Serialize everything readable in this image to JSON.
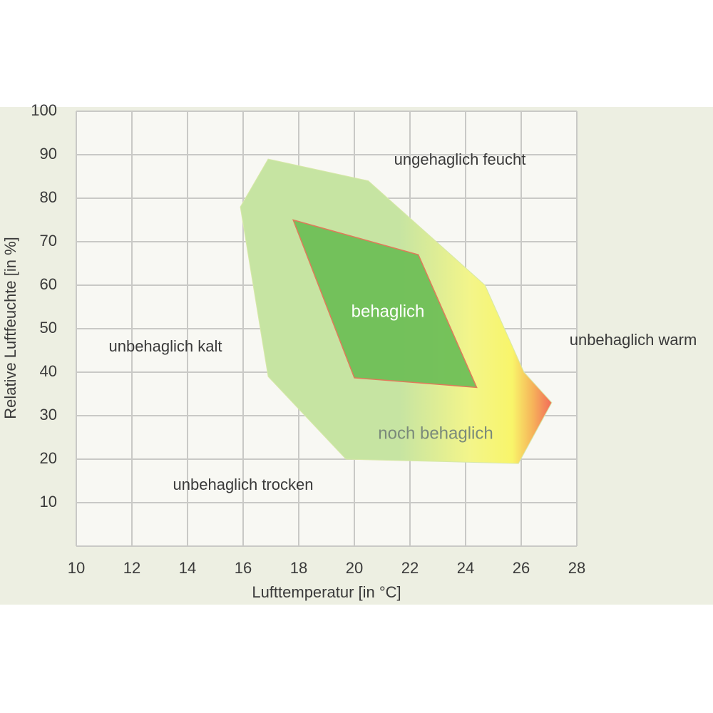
{
  "chart_data": {
    "type": "polygon",
    "x_label": "Lufttemperatur [in °C]",
    "y_label": "Relative Luftfeuchte [in %]",
    "xlim": [
      10,
      28
    ],
    "xticks": [
      10,
      12,
      14,
      16,
      18,
      20,
      22,
      24,
      26,
      28
    ],
    "ylim": [
      0,
      100
    ],
    "yticks": [
      10,
      20,
      30,
      40,
      50,
      60,
      70,
      80,
      90,
      100
    ],
    "grid": true,
    "series": [
      {
        "name": "noch behaglich",
        "color": "#c6e4a2",
        "x": [
          16.9,
          20.5,
          24.7,
          26.1,
          27.1,
          25.9,
          19.7,
          16.9,
          15.9
        ],
        "y": [
          89,
          84,
          60,
          40,
          33,
          19,
          20,
          39,
          78
        ]
      },
      {
        "name": "behaglich",
        "color": "#6fbf57",
        "x": [
          17.8,
          22.3,
          24.4,
          20
        ],
        "y": [
          75,
          67,
          36.5,
          38.7
        ]
      }
    ],
    "annotations": [
      "ungehaglich feucht",
      "unbehaglich kalt",
      "unbehaglich warm",
      "unbehaglich trocken"
    ]
  }
}
